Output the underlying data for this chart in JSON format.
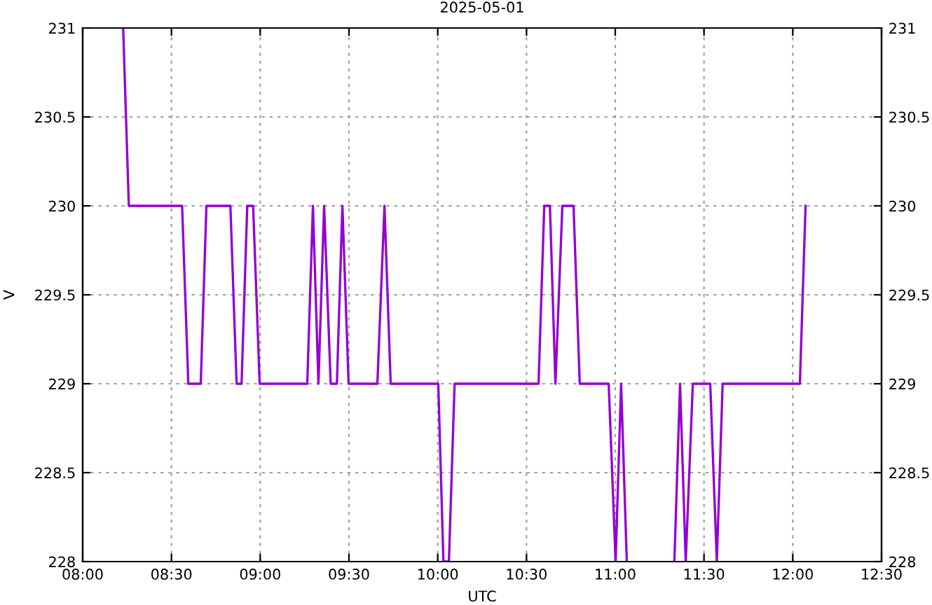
{
  "chart_data": {
    "type": "line",
    "title": "2025-05-01",
    "xlabel": "UTC",
    "ylabel": "V",
    "x": [
      8.228,
      8.26,
      8.56,
      8.595,
      8.665,
      8.697,
      8.832,
      8.867,
      8.895,
      8.927,
      8.96,
      8.997,
      9.265,
      9.297,
      9.328,
      9.36,
      9.397,
      9.432,
      9.463,
      9.498,
      9.66,
      9.7,
      9.735,
      10.003,
      10.032,
      10.063,
      10.095,
      10.568,
      10.6,
      10.632,
      10.663,
      10.702,
      10.765,
      10.8,
      10.963,
      11.002,
      11.033,
      11.065,
      11.2,
      11.333,
      11.365,
      11.397,
      11.437,
      11.535,
      11.572,
      11.605,
      12.04,
      12.072
    ],
    "series": [
      {
        "color": "#9400d3",
        "values": [
          231,
          230,
          230,
          229,
          229,
          230,
          230,
          229,
          229,
          230,
          230,
          229,
          229,
          230,
          229,
          230,
          229,
          229,
          230,
          229,
          229,
          230,
          229,
          229,
          228,
          228,
          229,
          229,
          230,
          230,
          229,
          230,
          230,
          229,
          229,
          228,
          229,
          228,
          null,
          228,
          229,
          228,
          229,
          229,
          228,
          229,
          229,
          230
        ]
      }
    ],
    "xlim": [
      8,
      12.5
    ],
    "xticks": [
      {
        "value": 8,
        "label": "08:00"
      },
      {
        "value": 8.5,
        "label": "08:30"
      },
      {
        "value": 9,
        "label": "09:00"
      },
      {
        "value": 9.5,
        "label": "09:30"
      },
      {
        "value": 10,
        "label": "10:00"
      },
      {
        "value": 10.5,
        "label": "10:30"
      },
      {
        "value": 11,
        "label": "11:00"
      },
      {
        "value": 11.5,
        "label": "11:30"
      },
      {
        "value": 12,
        "label": "12:00"
      },
      {
        "value": 12.5,
        "label": "12:30"
      }
    ],
    "ylim": [
      228,
      231
    ],
    "yticks": [
      228,
      228.5,
      229,
      229.5,
      230,
      230.5,
      231
    ],
    "y2lim": [
      228,
      231
    ],
    "y2ticks": [
      228,
      228.5,
      229,
      229.5,
      230,
      230.5,
      231
    ],
    "grid": true,
    "legend": false,
    "marker": "none",
    "line_style": "solid"
  }
}
